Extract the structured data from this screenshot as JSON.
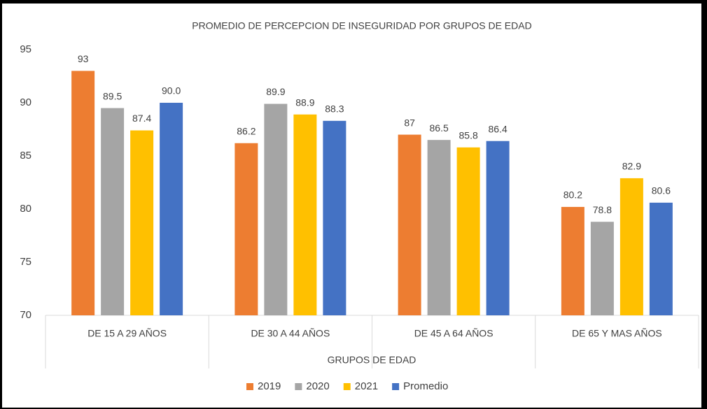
{
  "chart_data": {
    "type": "bar",
    "title": "PROMEDIO DE PERCEPCION DE INSEGURIDAD POR GRUPOS DE EDAD",
    "x_label": "GRUPOS DE EDAD",
    "categories": [
      "DE 15 A 29 AÑOS",
      "DE 30 A 44 AÑOS",
      "DE 45 A 64 AÑOS",
      "DE 65 Y MAS AÑOS"
    ],
    "series": [
      {
        "name": "2019",
        "color": "#ed7d31",
        "values": [
          93,
          86.2,
          87,
          80.2
        ]
      },
      {
        "name": "2020",
        "color": "#a5a5a5",
        "values": [
          89.5,
          89.9,
          86.5,
          78.8
        ]
      },
      {
        "name": "2021",
        "color": "#ffc000",
        "values": [
          87.4,
          88.9,
          85.8,
          82.9
        ]
      },
      {
        "name": "Promedio",
        "color": "#4472c4",
        "values": [
          90,
          88.3,
          86.4,
          80.6
        ],
        "value_labels": [
          "90.0",
          "88.3",
          "86.4",
          "80.6"
        ]
      }
    ],
    "ylim": [
      70,
      95
    ],
    "yticks": [
      70,
      75,
      80,
      85,
      90,
      95
    ],
    "grid": false,
    "legend": "bottom"
  }
}
